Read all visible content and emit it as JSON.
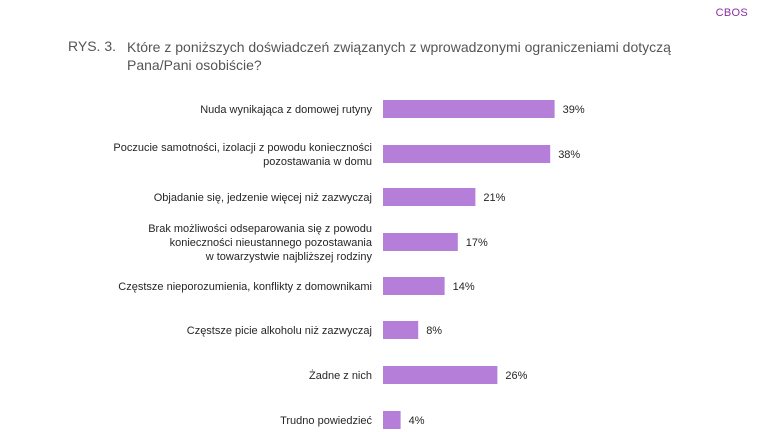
{
  "header": {
    "brand": "CBOS",
    "figure_label": "RYS. 3.",
    "figure_title": "Które z poniższych doświadczeń związanych z wprowadzonymi ograniczeniami dotyczą Pana/Pani osobiście?"
  },
  "chart_data": {
    "type": "bar",
    "orientation": "horizontal",
    "categories": [
      [
        "Nuda wynikająca z domowej rutyny"
      ],
      [
        "Poczucie samotności, izolacji z powodu konieczności",
        "pozostawania w domu"
      ],
      [
        "Objadanie się, jedzenie więcej niż zazwyczaj"
      ],
      [
        "Brak możliwości odseparowania się z powodu",
        "konieczności nieustannego pozostawania",
        "w towarzystwie najbliższej rodziny"
      ],
      [
        "Częstsze nieporozumienia, konflikty z domownikami"
      ],
      [
        "Częstsze picie alkoholu niż zazwyczaj"
      ],
      [
        "Żadne z nich"
      ],
      [
        "Trudno powiedzieć"
      ]
    ],
    "values": [
      39,
      38,
      21,
      17,
      14,
      8,
      26,
      4
    ],
    "value_labels": [
      "39%",
      "38%",
      "21%",
      "17%",
      "14%",
      "8%",
      "26%",
      "4%"
    ],
    "value_suffix": "%",
    "xlim": [
      0,
      100
    ],
    "bar_color": "#b57ed8",
    "grid": false,
    "legend": "none"
  }
}
